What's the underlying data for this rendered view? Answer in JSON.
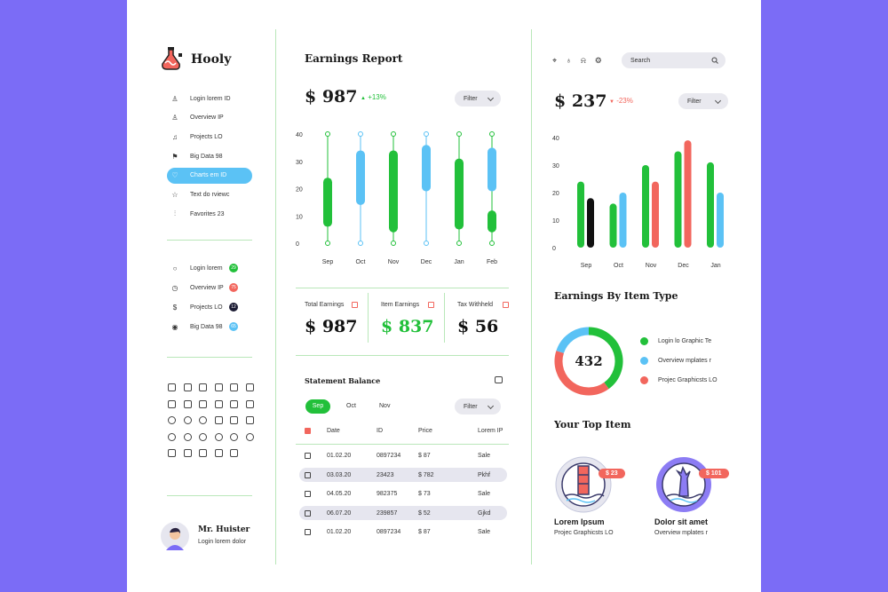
{
  "app": {
    "name": "Hooly"
  },
  "sidebar": {
    "items": [
      {
        "label": "Login lorem ID",
        "icon": "user-icon"
      },
      {
        "label": "Overview IP",
        "icon": "user-icon"
      },
      {
        "label": "Projects LO",
        "icon": "music-icon"
      },
      {
        "label": "Big Data 98",
        "icon": "flag-icon"
      },
      {
        "label": "Charts em ID",
        "icon": "heart-icon",
        "active": true
      },
      {
        "label": "Text do rviewc",
        "icon": "star-icon"
      },
      {
        "label": "Favorites 23",
        "icon": "sliders-icon"
      }
    ],
    "items2": [
      {
        "label": "Login lorem",
        "badge": "29",
        "badge_color": "#22c03a",
        "icon": "bulb-icon"
      },
      {
        "label": "Overview IP",
        "badge": "75",
        "badge_color": "#f2665d",
        "icon": "clock-icon"
      },
      {
        "label": "Projects LO",
        "badge": "12",
        "badge_color": "#1b1b33",
        "icon": "dollar-icon"
      },
      {
        "label": "Big Data 98",
        "badge": "65",
        "badge_color": "#5bc2f5",
        "icon": "pin-icon"
      }
    ],
    "user": {
      "name": "Mr. Huister",
      "subtitle": "Login lorem dolor"
    }
  },
  "earnings_report": {
    "title": "Earnings Report",
    "value": "$ 987",
    "change": "+13%",
    "filter": "Filter"
  },
  "candle_chart": {
    "type": "bar",
    "categories": [
      "Sep",
      "Oct",
      "Nov",
      "Dec",
      "Jan",
      "Feb"
    ],
    "ylim": [
      0,
      40
    ],
    "yticks": [
      "0",
      "10",
      "20",
      "30",
      "40"
    ],
    "whiskers": [
      [
        0,
        40
      ],
      [
        0,
        40
      ],
      [
        0,
        40
      ],
      [
        0,
        40
      ],
      [
        0,
        40
      ],
      [
        0,
        40
      ]
    ],
    "bodies": [
      [
        6,
        24
      ],
      [
        14,
        34
      ],
      [
        4,
        34
      ],
      [
        19,
        36
      ],
      [
        5,
        31
      ],
      [
        4,
        12
      ]
    ],
    "colors": [
      "#22c03a",
      "#5bc2f5",
      "#22c03a",
      "#5bc2f5",
      "#22c03a",
      "#22c03a"
    ],
    "extra_bodies": [
      {
        "index": 5,
        "range": [
          19,
          35
        ],
        "color": "#5bc2f5"
      }
    ]
  },
  "summary": [
    {
      "label": "Total Earnings",
      "value": "$ 987",
      "color": "#111111"
    },
    {
      "label": "Item Earnings",
      "value": "$ 837",
      "color": "#22c03a"
    },
    {
      "label": "Tax Withheld",
      "value": "$ 56",
      "color": "#111111"
    }
  ],
  "statement": {
    "title": "Statement Balance",
    "tabs": [
      "Sep",
      "Oct",
      "Nov"
    ],
    "filter": "Filter",
    "columns": [
      "Date",
      "ID",
      "Price",
      "Lorem IP"
    ],
    "rows": [
      [
        "01.02.20",
        "0897234",
        "$ 87",
        "Sale"
      ],
      [
        "03.03.20",
        "23423",
        "$ 782",
        "Pkhf"
      ],
      [
        "04.05.20",
        "982375",
        "$ 73",
        "Sale"
      ],
      [
        "06.07.20",
        "239857",
        "$ 52",
        "Gjkd"
      ],
      [
        "01.02.20",
        "0897234",
        "$ 87",
        "Sale"
      ]
    ]
  },
  "right": {
    "search_placeholder": "Search",
    "value": "$ 237",
    "change": "-23%",
    "filter": "Filter"
  },
  "bar_chart": {
    "type": "bar",
    "categories": [
      "Sep",
      "Oct",
      "Nov",
      "Dec",
      "Jan"
    ],
    "ylim": [
      0,
      40
    ],
    "yticks": [
      "0",
      "10",
      "20",
      "30",
      "40"
    ],
    "series": [
      {
        "values": [
          24,
          16,
          30,
          35,
          31
        ],
        "color": "#22c03a"
      },
      {
        "values": [
          18,
          20,
          24,
          39,
          20
        ],
        "colors": [
          "#111111",
          "#5bc2f5",
          "#f2665d",
          "#f2665d",
          "#5bc2f5"
        ]
      }
    ]
  },
  "item_type": {
    "title": "Earnings By Item Type",
    "total": "432",
    "legend": [
      {
        "label": "Login lo Graphic Te",
        "color": "#22c03a"
      },
      {
        "label": "Overview mplates r",
        "color": "#5bc2f5"
      },
      {
        "label": "Projec Graphicsts LO",
        "color": "#f2665d"
      }
    ],
    "chart_data": {
      "type": "pie",
      "slices": [
        {
          "color": "#22c03a",
          "value": 40
        },
        {
          "color": "#f2665d",
          "value": 40
        },
        {
          "color": "#5bc2f5",
          "value": 20
        }
      ]
    }
  },
  "top_items": {
    "title": "Your Top Item",
    "items": [
      {
        "price": "$ 23",
        "name": "Lorem Ipsum",
        "desc": "Projec Graphicsts LO"
      },
      {
        "price": "$ 101",
        "name": "Dolor sit amet",
        "desc": "Overview mplates r"
      }
    ]
  }
}
